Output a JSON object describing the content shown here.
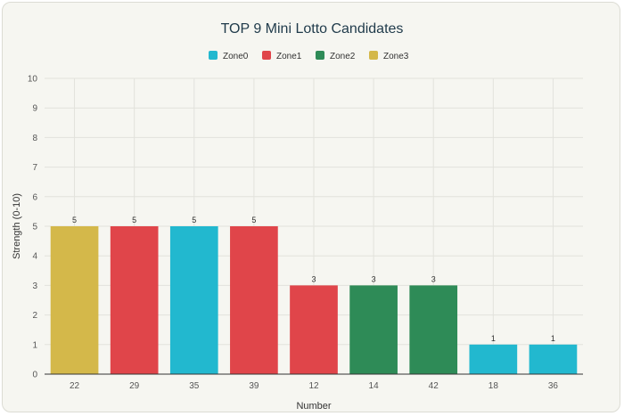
{
  "chart_data": {
    "type": "bar",
    "title": "TOP 9 Mini Lotto Candidates",
    "xlabel": "Number",
    "ylabel": "Strength (0-10)",
    "ylim": [
      0,
      10
    ],
    "yticks": [
      0,
      1,
      2,
      3,
      4,
      5,
      6,
      7,
      8,
      9,
      10
    ],
    "grid": true,
    "legend_position": "top-center",
    "categories": [
      "22",
      "29",
      "35",
      "39",
      "12",
      "14",
      "42",
      "18",
      "36"
    ],
    "values": [
      5,
      5,
      5,
      5,
      3,
      3,
      3,
      1,
      1
    ],
    "zones": [
      "Zone3",
      "Zone1",
      "Zone0",
      "Zone1",
      "Zone1",
      "Zone2",
      "Zone2",
      "Zone0",
      "Zone0"
    ],
    "legend": [
      {
        "name": "Zone0",
        "color": "#22b8cf"
      },
      {
        "name": "Zone1",
        "color": "#e0454a"
      },
      {
        "name": "Zone2",
        "color": "#2e8b57"
      },
      {
        "name": "Zone3",
        "color": "#d4b84a"
      }
    ]
  }
}
